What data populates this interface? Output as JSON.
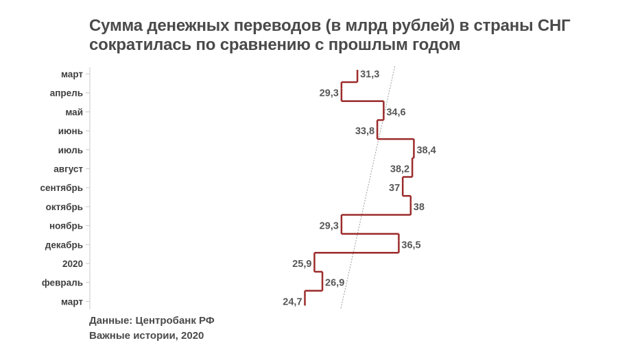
{
  "title": {
    "line1": "Сумма денежных переводов (в млрд рублей) в страны СНГ",
    "line2": "сократилась по сравнению с прошлым годом"
  },
  "source": {
    "line1": "Данные: Центробанк РФ",
    "line2": "Важные истории, 2020"
  },
  "colors": {
    "series": "#9b2a2a",
    "axis": "#c8c8c8",
    "trend": "#9a9a9a",
    "text": "#4a4a4a"
  },
  "chart_data": {
    "type": "line",
    "title": "Сумма денежных переводов (в млрд рублей) в страны СНГ сократилась по сравнению с прошлым годом",
    "orientation": "vertical-step",
    "categories": [
      "март",
      "апрель",
      "май",
      "июнь",
      "июль",
      "август",
      "сентябрь",
      "октябрь",
      "ноябрь",
      "декабрь",
      "2020",
      "февраль",
      "март"
    ],
    "values": [
      31.3,
      29.3,
      34.6,
      33.8,
      38.4,
      38.2,
      37,
      38,
      29.3,
      36.5,
      25.9,
      26.9,
      24.7
    ],
    "value_labels": [
      "31,3",
      "29,3",
      "34,6",
      "33,8",
      "38,4",
      "38,2",
      "37",
      "38",
      "29,3",
      "36,5",
      "25,9",
      "26,9",
      "24,7"
    ],
    "trend_line": true,
    "grid": false,
    "legend": "none"
  }
}
